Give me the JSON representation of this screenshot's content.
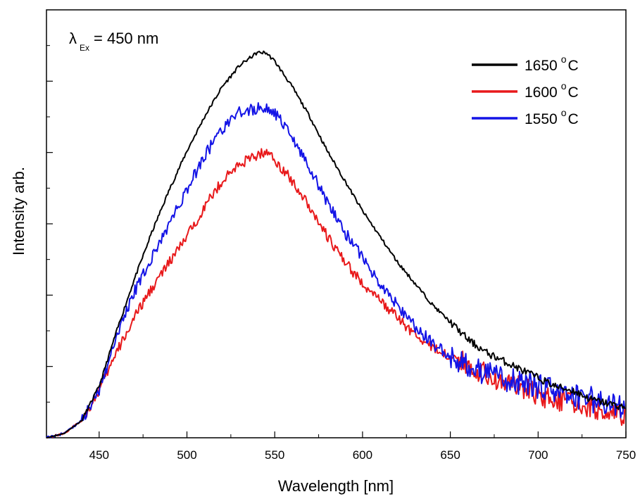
{
  "chart_data": {
    "type": "line",
    "title": "",
    "xlabel": "Wavelength [nm]",
    "ylabel": "Intensity arb.",
    "xlim": [
      420,
      750
    ],
    "ylim": [
      0,
      1.0
    ],
    "x_ticks": [
      450,
      500,
      550,
      600,
      650,
      700,
      750
    ],
    "y_tick_labels_shown": false,
    "grid": false,
    "legend_position": "top-right",
    "annotation": {
      "symbol": "λ",
      "subscript": "Ex",
      "text": "= 450 nm"
    },
    "legend_degree_mark": "o",
    "legend_unit": "C",
    "series": [
      {
        "name": "1650",
        "color": "#000000",
        "x": [
          420,
          430,
          440,
          450,
          460,
          470,
          480,
          490,
          500,
          510,
          520,
          530,
          540,
          545,
          550,
          560,
          570,
          580,
          590,
          600,
          610,
          620,
          630,
          640,
          650,
          660,
          670,
          680,
          690,
          700,
          710,
          720,
          730,
          740,
          750
        ],
        "y": [
          0.0,
          0.01,
          0.04,
          0.12,
          0.25,
          0.37,
          0.48,
          0.58,
          0.67,
          0.75,
          0.82,
          0.87,
          0.9,
          0.9,
          0.88,
          0.82,
          0.75,
          0.67,
          0.6,
          0.53,
          0.47,
          0.41,
          0.36,
          0.31,
          0.27,
          0.23,
          0.2,
          0.18,
          0.16,
          0.14,
          0.12,
          0.11,
          0.09,
          0.08,
          0.07
        ]
      },
      {
        "name": "1600",
        "color": "#e8191b",
        "x": [
          420,
          430,
          440,
          450,
          460,
          470,
          480,
          490,
          500,
          510,
          520,
          530,
          540,
          545,
          550,
          560,
          570,
          580,
          590,
          600,
          610,
          620,
          630,
          640,
          650,
          660,
          670,
          680,
          690,
          700,
          710,
          720,
          730,
          740,
          750
        ],
        "y": [
          0.0,
          0.01,
          0.04,
          0.11,
          0.2,
          0.28,
          0.35,
          0.41,
          0.47,
          0.54,
          0.6,
          0.64,
          0.66,
          0.67,
          0.65,
          0.6,
          0.54,
          0.47,
          0.41,
          0.36,
          0.32,
          0.28,
          0.24,
          0.21,
          0.19,
          0.17,
          0.15,
          0.13,
          0.12,
          0.1,
          0.09,
          0.08,
          0.07,
          0.06,
          0.05
        ]
      },
      {
        "name": "1550",
        "color": "#1414e6",
        "x": [
          420,
          430,
          440,
          450,
          460,
          470,
          480,
          490,
          500,
          510,
          520,
          530,
          540,
          545,
          550,
          560,
          570,
          580,
          590,
          600,
          610,
          620,
          630,
          640,
          650,
          660,
          670,
          680,
          690,
          700,
          710,
          720,
          730,
          740,
          750
        ],
        "y": [
          0.0,
          0.01,
          0.04,
          0.11,
          0.24,
          0.34,
          0.42,
          0.5,
          0.58,
          0.66,
          0.72,
          0.76,
          0.77,
          0.77,
          0.76,
          0.7,
          0.63,
          0.55,
          0.48,
          0.42,
          0.36,
          0.31,
          0.26,
          0.22,
          0.19,
          0.17,
          0.15,
          0.14,
          0.13,
          0.12,
          0.11,
          0.1,
          0.09,
          0.08,
          0.07
        ]
      }
    ]
  }
}
